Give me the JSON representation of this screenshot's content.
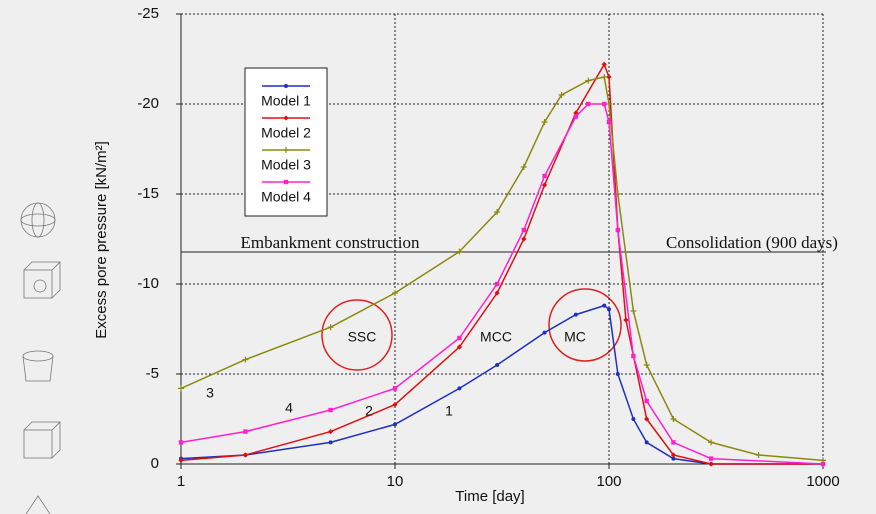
{
  "chart_data": {
    "type": "line",
    "xlabel": "Time [day]",
    "ylabel": "Excess pore pressure [kN/m²]",
    "xscale": "log",
    "xlim": [
      1,
      1000
    ],
    "xticks": [
      1,
      10,
      100,
      1000
    ],
    "ylim": [
      0,
      -25
    ],
    "yticks": [
      0,
      -5,
      -10,
      -15,
      -20,
      -25
    ],
    "grid": true,
    "series": [
      {
        "name": "Model 1",
        "color": "#1f2fc0",
        "marker": "circle",
        "x": [
          1,
          2,
          5,
          10,
          20,
          30,
          50,
          70,
          95,
          100,
          110,
          130,
          150,
          200,
          300,
          1000
        ],
        "values": [
          -0.3,
          -0.5,
          -1.2,
          -2.2,
          -4.2,
          -5.5,
          -7.3,
          -8.3,
          -8.8,
          -8.6,
          -5,
          -2.5,
          -1.2,
          -0.3,
          0,
          0
        ]
      },
      {
        "name": "Model 2",
        "color": "#e01010",
        "marker": "diamond",
        "x": [
          1,
          2,
          5,
          10,
          20,
          30,
          40,
          50,
          70,
          95,
          100,
          110,
          120,
          150,
          200,
          300,
          1000
        ],
        "values": [
          -0.2,
          -0.5,
          -1.8,
          -3.3,
          -6.5,
          -9.5,
          -12.5,
          -15.5,
          -19.5,
          -22.2,
          -21.5,
          -13,
          -8,
          -2.5,
          -0.5,
          0,
          0
        ]
      },
      {
        "name": "Model 3",
        "color": "#8a8a10",
        "marker": "plus",
        "x": [
          1,
          2,
          5,
          10,
          20,
          30,
          40,
          50,
          60,
          80,
          95,
          100,
          110,
          130,
          150,
          200,
          300,
          500,
          1000
        ],
        "values": [
          -4.2,
          -5.8,
          -7.6,
          -9.5,
          -11.8,
          -14,
          -16.5,
          -19,
          -20.5,
          -21.3,
          -21.5,
          -20,
          -15,
          -8.5,
          -5.5,
          -2.5,
          -1.2,
          -0.5,
          -0.2
        ]
      },
      {
        "name": "Model 4",
        "color": "#ff20d0",
        "marker": "square",
        "x": [
          1,
          2,
          5,
          10,
          20,
          30,
          40,
          50,
          70,
          80,
          95,
          100,
          110,
          130,
          150,
          200,
          300,
          1000
        ],
        "values": [
          -1.2,
          -1.8,
          -3,
          -4.2,
          -7,
          -10,
          -13,
          -16,
          -19.3,
          -20,
          -20,
          -19,
          -13,
          -6,
          -3.5,
          -1.2,
          -0.3,
          0
        ]
      }
    ],
    "annotations": [
      "Embankment construction",
      "Consolidation (900 days)",
      "SSC",
      "MCC",
      "MC",
      "3",
      "4",
      "2",
      "1"
    ]
  }
}
